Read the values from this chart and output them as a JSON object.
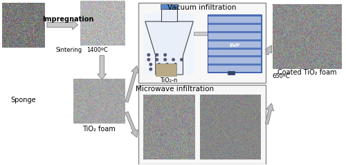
{
  "fig_width": 5.0,
  "fig_height": 2.39,
  "dpi": 100,
  "background_color": "#ffffff",
  "labels": {
    "sponge": "Sponge",
    "impregnation": "Impregnation",
    "sintering": "Sintering",
    "temp_sinter": "1400ºC",
    "tio2_foam": "TiO₂ foam",
    "vacuum": "Vacuum infiltration",
    "tio2_n": "TiO₂-n",
    "microwave": "Microwave infiltration",
    "temp_coat": "650ºC",
    "coated": "Coated TiO₂ foam"
  },
  "font_size_label": 7.0,
  "font_size_small": 6.0
}
